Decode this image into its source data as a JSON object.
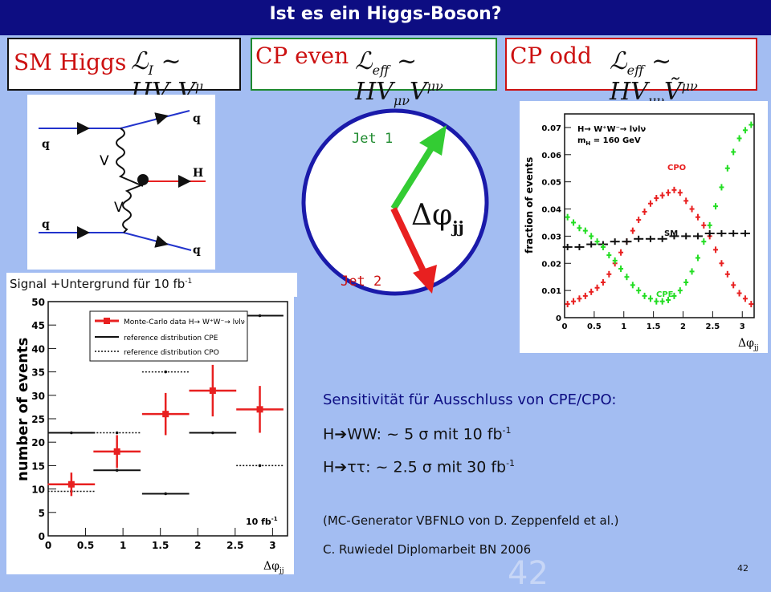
{
  "slide": {
    "title": "Ist es ein Higgs-Boson?",
    "page_number": "42",
    "ghost_number": "42"
  },
  "boxes": [
    {
      "label": "SM Higgs",
      "formula": "ℒ",
      "sub": "I",
      "rest": " ~ HV",
      "tail": "μ",
      "tail2": "V",
      "tail3": "μ",
      "border": "#111111"
    },
    {
      "label": "CP even",
      "formula": "ℒ",
      "sub": "eff",
      "rest": " ~ HV",
      "tail": "μν",
      "tail2": "V",
      "tail3": "μν",
      "border": "#1e8a2e"
    },
    {
      "label": "CP odd",
      "formula": "ℒ",
      "sub": "eff",
      "rest": " ~ HV",
      "tail": "μν",
      "tail2": "Ṽ",
      "tail3": "μν",
      "border": "#cc1111"
    }
  ],
  "feynman": {
    "labels": [
      "q",
      "q",
      "q",
      "q",
      "H",
      "V",
      "V"
    ]
  },
  "jets": {
    "jet1": "Jet 1",
    "jet2": "Jet 2",
    "angle_symbol": "Δφ",
    "angle_sub": "jj"
  },
  "signal_label": {
    "prefix": "Signal +Untergrund  für 10 fb",
    "sup": "-1"
  },
  "right_chart": {
    "ylabel": "fraction of events",
    "xlabel": "Δφ",
    "xlabel_sub": "jj",
    "legend_line1": "H→ W⁺W⁻→ lνlν",
    "legend_line2": "m",
    "legend_line2_sub": "H",
    "legend_line2_rest": " = 160 GeV",
    "label_cpo": "CPO",
    "label_sm": "SM",
    "label_cpe": "CPE",
    "yticks": [
      "0",
      "0.01",
      "0.02",
      "0.03",
      "0.04",
      "0.05",
      "0.06",
      "0.07"
    ],
    "xticks": [
      "0",
      "0.5",
      "1",
      "1.5",
      "2",
      "2.5",
      "3"
    ],
    "colors": {
      "cpo": "#e82020",
      "sm": "#111111",
      "cpe": "#22dd22"
    }
  },
  "left_chart": {
    "ylabel": "number of events",
    "xlabel": "Δφ",
    "xlabel_sub": "jj",
    "lumi": "10 fb",
    "lumi_sup": "-1",
    "legend": [
      "Monte-Carlo data H→ W⁺W⁻→ lνlν",
      "reference distribution CPE",
      "reference distribution CPO"
    ],
    "yticks": [
      "0",
      "5",
      "10",
      "15",
      "20",
      "25",
      "30",
      "35",
      "40",
      "45",
      "50"
    ],
    "xticks": [
      "0",
      "0.5",
      "1",
      "1.5",
      "2",
      "2.5",
      "3"
    ]
  },
  "sensitivity": {
    "heading": "Sensitivität für Ausschluss von CPE/CPO:",
    "line1_prefix": "H",
    "line1_mid": "WW:  ~ 5  σ mit 10 fb",
    "line1_sup": "-1",
    "line2_prefix": "H",
    "line2_mid": "ττ:    ~ 2.5 σ mit 30 fb",
    "line2_sup": "-1",
    "note1": "(MC-Generator VBFNLO von D. Zeppenfeld et al.)",
    "note2": "C. Ruwiedel Diplomarbeit BN 2006"
  },
  "chart_data": [
    {
      "type": "scatter",
      "title": "",
      "ylabel": "fraction of events",
      "xlabel": "Δφjj",
      "xlim": [
        0,
        3.2
      ],
      "ylim": [
        0,
        0.075
      ],
      "series": [
        {
          "name": "CPO",
          "x": [
            0.05,
            0.15,
            0.25,
            0.35,
            0.45,
            0.55,
            0.65,
            0.75,
            0.85,
            0.95,
            1.05,
            1.15,
            1.25,
            1.35,
            1.45,
            1.55,
            1.65,
            1.75,
            1.85,
            1.95,
            2.05,
            2.15,
            2.25,
            2.35,
            2.45,
            2.55,
            2.65,
            2.75,
            2.85,
            2.95,
            3.05,
            3.15
          ],
          "y": [
            0.005,
            0.006,
            0.007,
            0.008,
            0.0095,
            0.011,
            0.013,
            0.016,
            0.02,
            0.024,
            0.028,
            0.032,
            0.036,
            0.039,
            0.042,
            0.044,
            0.045,
            0.046,
            0.047,
            0.046,
            0.043,
            0.04,
            0.037,
            0.034,
            0.03,
            0.025,
            0.02,
            0.016,
            0.012,
            0.009,
            0.007,
            0.005
          ]
        },
        {
          "name": "SM",
          "x": [
            0.05,
            0.25,
            0.45,
            0.65,
            0.85,
            1.05,
            1.25,
            1.45,
            1.65,
            1.85,
            2.05,
            2.25,
            2.45,
            2.65,
            2.85,
            3.05
          ],
          "y": [
            0.026,
            0.026,
            0.027,
            0.027,
            0.028,
            0.028,
            0.029,
            0.029,
            0.029,
            0.03,
            0.03,
            0.03,
            0.031,
            0.031,
            0.031,
            0.031
          ]
        },
        {
          "name": "CPE",
          "x": [
            0.05,
            0.15,
            0.25,
            0.35,
            0.45,
            0.55,
            0.65,
            0.75,
            0.85,
            0.95,
            1.05,
            1.15,
            1.25,
            1.35,
            1.45,
            1.55,
            1.65,
            1.75,
            1.85,
            1.95,
            2.05,
            2.15,
            2.25,
            2.35,
            2.45,
            2.55,
            2.65,
            2.75,
            2.85,
            2.95,
            3.05,
            3.15
          ],
          "y": [
            0.037,
            0.035,
            0.033,
            0.032,
            0.03,
            0.028,
            0.026,
            0.023,
            0.021,
            0.018,
            0.015,
            0.012,
            0.01,
            0.008,
            0.007,
            0.006,
            0.006,
            0.0065,
            0.008,
            0.01,
            0.013,
            0.017,
            0.022,
            0.028,
            0.034,
            0.041,
            0.048,
            0.055,
            0.061,
            0.066,
            0.069,
            0.071
          ]
        }
      ]
    },
    {
      "type": "scatter",
      "title": "",
      "ylabel": "number of events",
      "xlabel": "Δφjj",
      "xlim": [
        0,
        3.2
      ],
      "ylim": [
        0,
        50
      ],
      "series": [
        {
          "name": "Monte-Carlo data H→ W⁺W⁻→ lνlν",
          "x": [
            0.31,
            0.92,
            1.57,
            2.2,
            2.83
          ],
          "y": [
            11,
            18,
            26,
            31,
            27
          ],
          "yerr": [
            2.5,
            3.5,
            4.5,
            5.5,
            5.0
          ]
        },
        {
          "name": "reference distribution CPE",
          "x": [
            0.31,
            0.92,
            1.57,
            2.2,
            2.83
          ],
          "y": [
            22,
            14,
            9,
            22,
            47
          ]
        },
        {
          "name": "reference distribution CPO",
          "x": [
            0.31,
            0.92,
            1.57,
            2.2,
            2.83
          ],
          "y": [
            9.5,
            22,
            35,
            31,
            15
          ]
        }
      ]
    }
  ]
}
